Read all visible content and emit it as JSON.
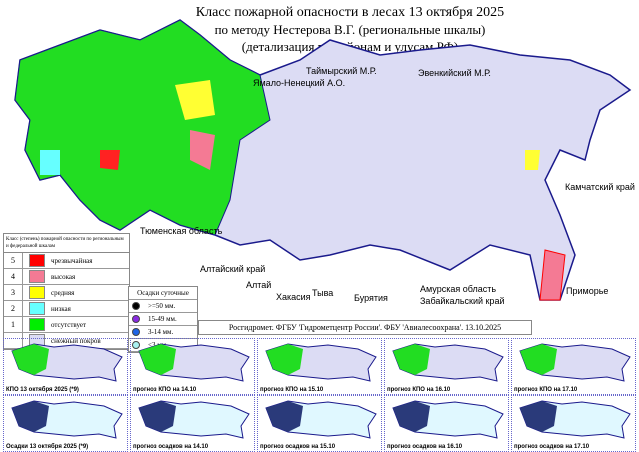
{
  "title": {
    "line1": "Класс пожарной опасности в лесах 13  октября 2025",
    "line2": "по методу Нестерова В.Г. (региональные шкалы)",
    "line3": "(детализация по районам и улусам РФ)"
  },
  "regions": [
    "Таймырский М.Р.",
    "Ямало-Ненецкий А.О.",
    "Эвенкийский М.Р.",
    "Камчатский край",
    "Тюменская область",
    "Алтайский край",
    "Алтай",
    "Хакасия",
    "Тыва",
    "Бурятия",
    "Амурская область",
    "Забайкальский край",
    "Приморье"
  ],
  "legend": {
    "header": "Класс (степень) пожарной опасности по региональным и федеральной шкалам",
    "items": [
      {
        "n": "5",
        "label": "чрезвычайная",
        "color": "#ff0000"
      },
      {
        "n": "4",
        "label": "высокая",
        "color": "#f47a94"
      },
      {
        "n": "3",
        "label": "средняя",
        "color": "#ffff00"
      },
      {
        "n": "2",
        "label": "низкая",
        "color": "#66ffff"
      },
      {
        "n": "1",
        "label": "отсутствует",
        "color": "#00ee00"
      },
      {
        "n": "",
        "label": "снежный покров",
        "color": "#dcdcf4"
      }
    ]
  },
  "precip": {
    "header": "Осадки суточные",
    "items": [
      {
        "label": ">=50 мм.",
        "color": "#000000"
      },
      {
        "label": "15-49 мм.",
        "color": "#8a2be2"
      },
      {
        "label": "3-14 мм.",
        "color": "#1e64e6"
      },
      {
        "label": "<3 мм.",
        "color": "#aaf0f0"
      }
    ]
  },
  "footer": "Росгидромет. ФГБУ 'Гидрометцентр России'. ФБУ 'Авиалесоохрана'. 13.10.2025",
  "thumbnails": {
    "fire": [
      "КПО 13  октября 2025 (*9)",
      "прогноз КПО на 14.10",
      "прогноз КПО на 15.10",
      "прогноз КПО на 16.10",
      "прогноз КПО на 17.10"
    ],
    "precip": [
      "Осадки 13  октября 2025 (*9)",
      "прогноз осадков на 14.10",
      "прогноз осадков на 15.10",
      "прогноз осадков на 16.10",
      "прогноз осадков на 17.10"
    ]
  }
}
